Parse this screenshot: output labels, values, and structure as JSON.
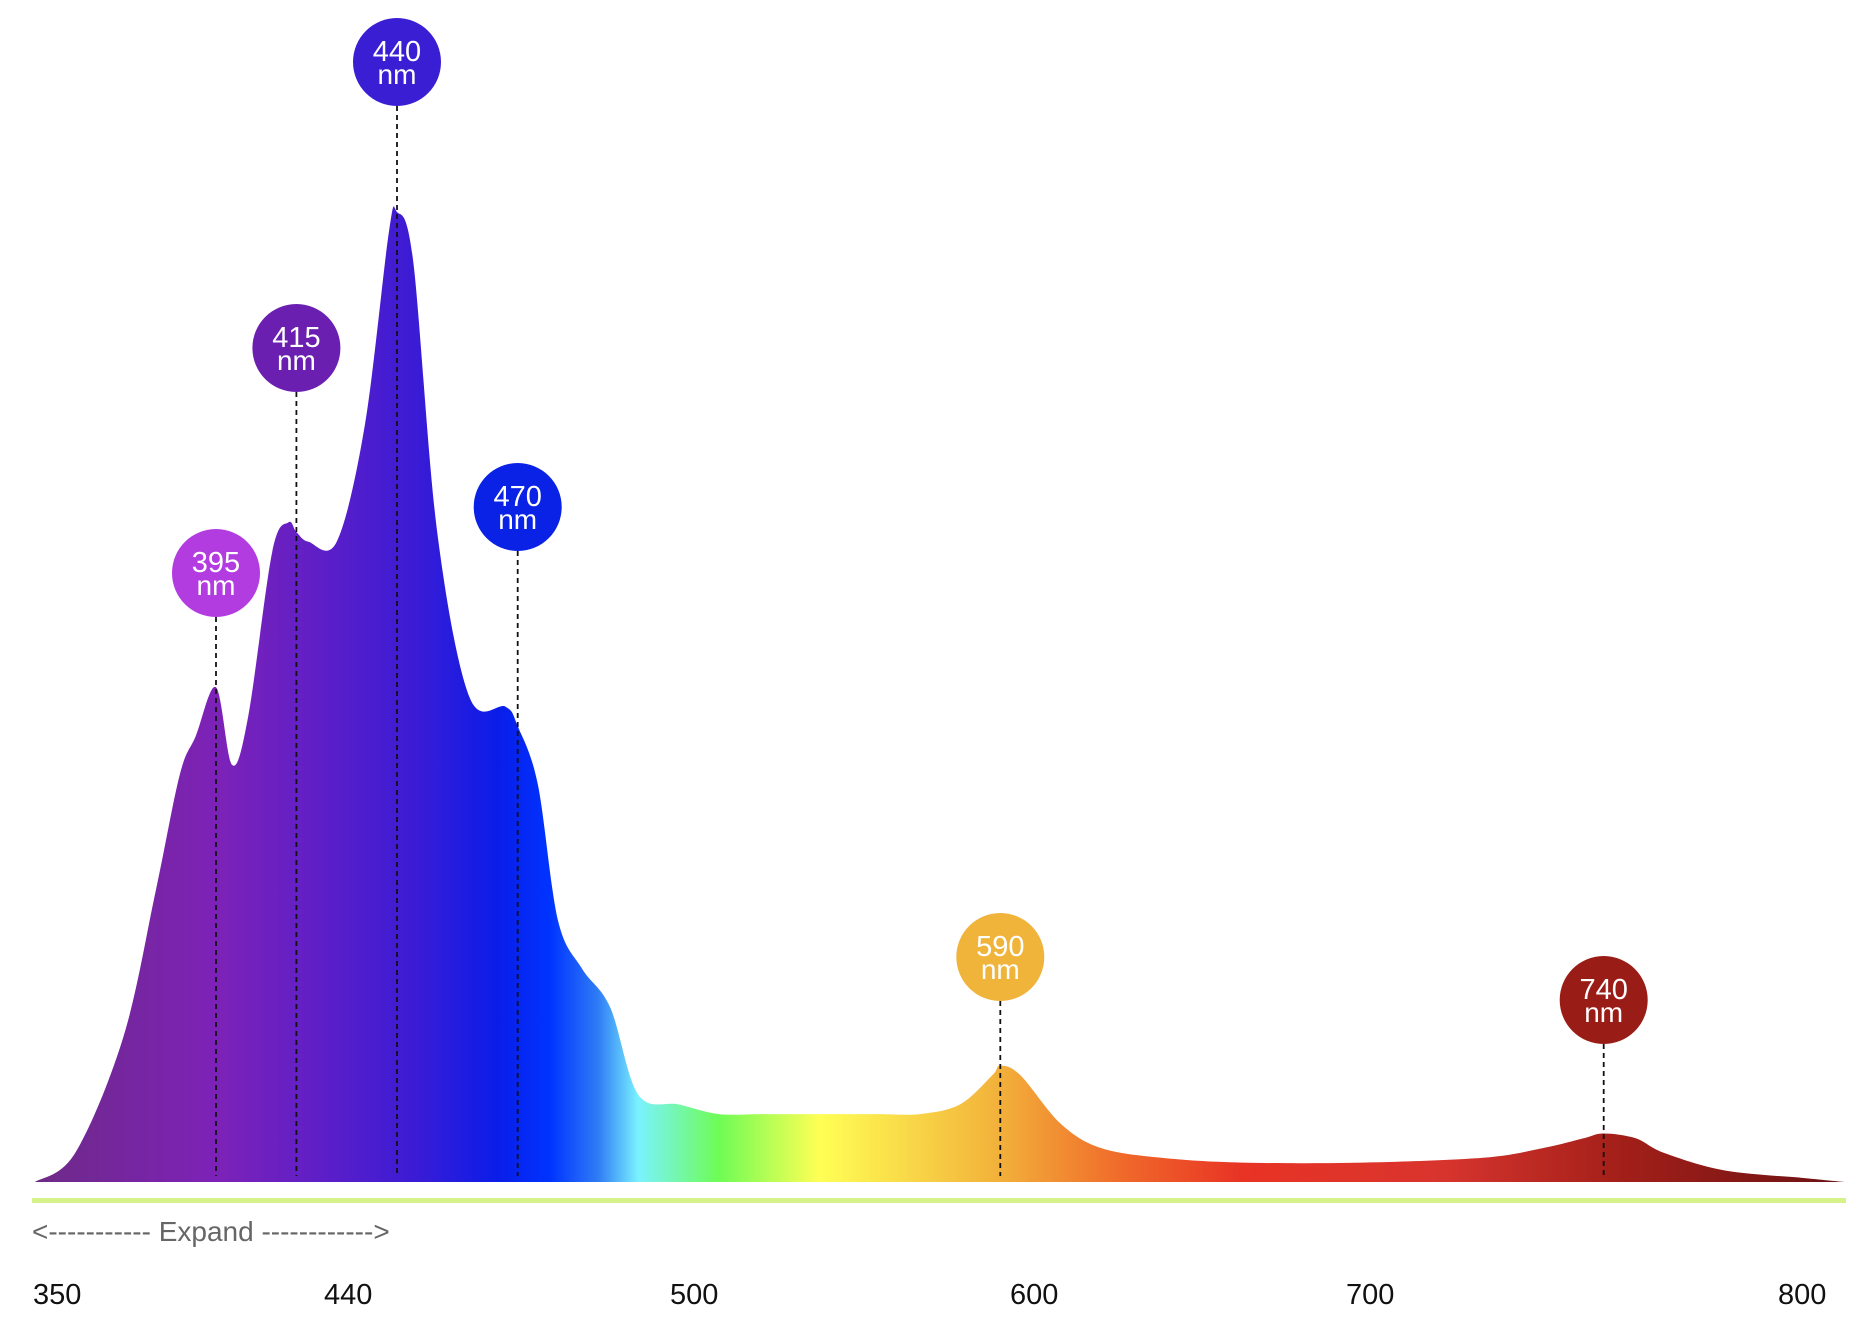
{
  "chart_data": {
    "type": "area",
    "title": "",
    "xlabel": "",
    "ylabel": "",
    "x_ticks": [
      "350",
      "440",
      "500",
      "600",
      "700",
      "800"
    ],
    "xlim": [
      350,
      800
    ],
    "ylim": [
      0,
      1
    ],
    "grid": false,
    "legend": "none",
    "series": [
      {
        "x": [
          350,
          360,
          372,
          380,
          386,
          390,
          395,
          399,
          403,
          409,
          413,
          415,
          418,
          425,
          432,
          438,
          440,
          444,
          450,
          458,
          467,
          470,
          475,
          480,
          486,
          493,
          500,
          510,
          520,
          530,
          540,
          550,
          560,
          570,
          580,
          588,
          590,
          595,
          605,
          615,
          630,
          650,
          680,
          710,
          725,
          735,
          740,
          748,
          755,
          770,
          790,
          800
        ],
        "y": [
          0.0,
          0.03,
          0.15,
          0.3,
          0.42,
          0.46,
          0.51,
          0.43,
          0.48,
          0.65,
          0.68,
          0.67,
          0.66,
          0.66,
          0.78,
          0.98,
          1.0,
          0.95,
          0.67,
          0.5,
          0.49,
          0.47,
          0.41,
          0.27,
          0.22,
          0.18,
          0.09,
          0.08,
          0.07,
          0.07,
          0.07,
          0.07,
          0.07,
          0.07,
          0.08,
          0.11,
          0.12,
          0.11,
          0.06,
          0.035,
          0.025,
          0.02,
          0.02,
          0.025,
          0.035,
          0.045,
          0.05,
          0.045,
          0.03,
          0.012,
          0.004,
          0.0
        ]
      }
    ],
    "peaks": [
      {
        "wavelength": 395,
        "label": "395",
        "unit": "nm",
        "color": "#b23ce0"
      },
      {
        "wavelength": 415,
        "label": "415",
        "unit": "nm",
        "color": "#6a1fb0"
      },
      {
        "wavelength": 440,
        "label": "440",
        "unit": "nm",
        "color": "#3a1ed4"
      },
      {
        "wavelength": 470,
        "label": "470",
        "unit": "nm",
        "color": "#0a22e6"
      },
      {
        "wavelength": 590,
        "label": "590",
        "unit": "nm",
        "color": "#f0b43a"
      },
      {
        "wavelength": 740,
        "label": "740",
        "unit": "nm",
        "color": "#9a1c16"
      }
    ],
    "baseline_color": "#d6f28a",
    "expand_label": "<----------- Expand ------------>",
    "gradient_stops": [
      {
        "wavelength": 350,
        "color": "#6e2a86"
      },
      {
        "wavelength": 395,
        "color": "#7d22b8"
      },
      {
        "wavelength": 420,
        "color": "#5f1fc6"
      },
      {
        "wavelength": 445,
        "color": "#3a1bd6"
      },
      {
        "wavelength": 465,
        "color": "#0a1de8"
      },
      {
        "wavelength": 478,
        "color": "#0033ff"
      },
      {
        "wavelength": 490,
        "color": "#2f7cf5"
      },
      {
        "wavelength": 500,
        "color": "#7af2ff"
      },
      {
        "wavelength": 520,
        "color": "#6efc55"
      },
      {
        "wavelength": 545,
        "color": "#ffff55"
      },
      {
        "wavelength": 590,
        "color": "#f2b03a"
      },
      {
        "wavelength": 620,
        "color": "#f06a2a"
      },
      {
        "wavelength": 650,
        "color": "#e83325"
      },
      {
        "wavelength": 700,
        "color": "#d8342e"
      },
      {
        "wavelength": 745,
        "color": "#a21f19"
      },
      {
        "wavelength": 800,
        "color": "#6b1214"
      }
    ]
  }
}
